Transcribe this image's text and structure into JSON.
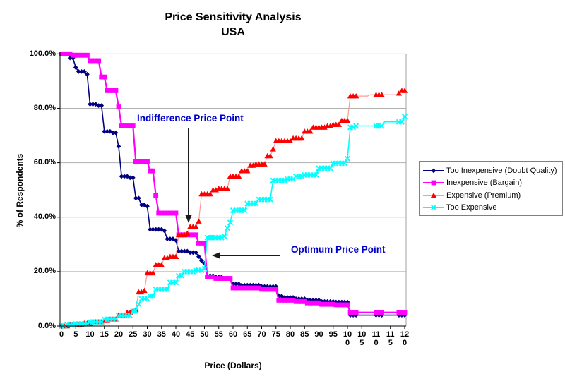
{
  "title": {
    "line1": "Price Sensitivity Analysis",
    "line2": "USA"
  },
  "axes": {
    "y_title": "% of Respondents",
    "x_title": "Price (Dollars)",
    "y_ticks": [
      {
        "label": "0.0%",
        "value": 0
      },
      {
        "label": "20.0%",
        "value": 20
      },
      {
        "label": "40.0%",
        "value": 40
      },
      {
        "label": "60.0%",
        "value": 60
      },
      {
        "label": "80.0%",
        "value": 80
      },
      {
        "label": "100.0%",
        "value": 100
      }
    ],
    "x_tick_step": 5,
    "x_tick_labels": [
      "0",
      "5",
      "10",
      "15",
      "20",
      "25",
      "30",
      "35",
      "40",
      "45",
      "50",
      "55",
      "60",
      "65",
      "70",
      "75",
      "80",
      "85",
      "90",
      "95",
      "10\n0",
      "10\n5",
      "11\n0",
      "11\n5",
      "12\n0"
    ]
  },
  "annotations": {
    "indifference": "Indifference Price Point",
    "optimum": "Optimum Price Point",
    "text_color": "#0000CC",
    "arrow_color": "#1a1a1a"
  },
  "legend": {
    "items": [
      {
        "label": "Too Inexpensive (Doubt Quality)",
        "marker": "diamond",
        "color": "#000080",
        "line_color": "#000080"
      },
      {
        "label": "Inexpensive (Bargain)",
        "marker": "square",
        "color": "#FF00FF",
        "line_color": "#FF00FF"
      },
      {
        "label": "Expensive (Premium)",
        "marker": "triangle",
        "color": "#FF0000",
        "line_color": "#FF9999"
      },
      {
        "label": "Too Expensive",
        "marker": "x",
        "color": "#00FFFF",
        "line_color": "#00FFFF"
      }
    ]
  },
  "chart_data": {
    "type": "line",
    "title": "Price Sensitivity Analysis USA",
    "xlabel": "Price (Dollars)",
    "ylabel": "% of Respondents",
    "xlim": [
      0,
      120
    ],
    "ylim": [
      0,
      100
    ],
    "grid": "horizontal",
    "legend_position": "right",
    "interpolation": "step-after; breakpoints are [price, percent]; points plotted every $1",
    "marker_prices_above_100": [
      101,
      102,
      103,
      110,
      111,
      112,
      118,
      119,
      120
    ],
    "series": [
      {
        "name": "Too Inexpensive (Doubt Quality)",
        "marker": "diamond",
        "color": "#000080",
        "line_color": "#000080",
        "line_width": 1.6,
        "breakpoints": [
          [
            0,
            100
          ],
          [
            3,
            98.5
          ],
          [
            5,
            95
          ],
          [
            6,
            93.5
          ],
          [
            9,
            92.5
          ],
          [
            10,
            81.5
          ],
          [
            13,
            81
          ],
          [
            15,
            71.5
          ],
          [
            18,
            71
          ],
          [
            20,
            66
          ],
          [
            21,
            55
          ],
          [
            24,
            54.5
          ],
          [
            26,
            47
          ],
          [
            28,
            44.5
          ],
          [
            30,
            44
          ],
          [
            31,
            35.5
          ],
          [
            36,
            35
          ],
          [
            37,
            32
          ],
          [
            40,
            31.5
          ],
          [
            41,
            27.5
          ],
          [
            45,
            27
          ],
          [
            48,
            25.5
          ],
          [
            49,
            24
          ],
          [
            50,
            23
          ],
          [
            51,
            18.5
          ],
          [
            54,
            18
          ],
          [
            57,
            17.5
          ],
          [
            60,
            15.5
          ],
          [
            63,
            15
          ],
          [
            70,
            14.5
          ],
          [
            76,
            11
          ],
          [
            78,
            10.5
          ],
          [
            82,
            10
          ],
          [
            86,
            9.5
          ],
          [
            91,
            9
          ],
          [
            96,
            8.8
          ],
          [
            101,
            4
          ],
          [
            120,
            4
          ]
        ]
      },
      {
        "name": "Inexpensive (Bargain)",
        "marker": "square",
        "color": "#FF00FF",
        "line_color": "#FF00FF",
        "line_width": 2.2,
        "breakpoints": [
          [
            0,
            100
          ],
          [
            4,
            99.5
          ],
          [
            10,
            97.5
          ],
          [
            14,
            91.5
          ],
          [
            16,
            86.5
          ],
          [
            20,
            80.5
          ],
          [
            21,
            73.5
          ],
          [
            26,
            60.5
          ],
          [
            31,
            57
          ],
          [
            33,
            48
          ],
          [
            34,
            41.5
          ],
          [
            41,
            33.5
          ],
          [
            48,
            30.5
          ],
          [
            51,
            18
          ],
          [
            54,
            17.5
          ],
          [
            60,
            14
          ],
          [
            70,
            13.5
          ],
          [
            76,
            9.5
          ],
          [
            82,
            9
          ],
          [
            86,
            8.5
          ],
          [
            91,
            8
          ],
          [
            96,
            7.8
          ],
          [
            101,
            5
          ],
          [
            120,
            5
          ]
        ]
      },
      {
        "name": "Expensive (Premium)",
        "marker": "triangle",
        "color": "#FF0000",
        "line_color": "#FF9999",
        "line_width": 1.2,
        "breakpoints": [
          [
            0,
            0
          ],
          [
            3,
            0.5
          ],
          [
            8,
            1
          ],
          [
            11,
            1.5
          ],
          [
            15,
            2
          ],
          [
            17,
            2.5
          ],
          [
            20,
            4
          ],
          [
            23,
            5
          ],
          [
            25,
            5.5
          ],
          [
            26,
            6
          ],
          [
            27,
            12.5
          ],
          [
            29,
            13
          ],
          [
            30,
            19.5
          ],
          [
            33,
            22.5
          ],
          [
            36,
            25
          ],
          [
            38,
            25.5
          ],
          [
            41,
            33.5
          ],
          [
            44,
            34
          ],
          [
            45,
            36.5
          ],
          [
            48,
            38.5
          ],
          [
            49,
            48.5
          ],
          [
            53,
            50
          ],
          [
            55,
            50.5
          ],
          [
            59,
            55
          ],
          [
            63,
            57
          ],
          [
            66,
            59
          ],
          [
            68,
            59.5
          ],
          [
            72,
            62.5
          ],
          [
            74,
            65
          ],
          [
            75,
            68
          ],
          [
            81,
            69
          ],
          [
            85,
            71.5
          ],
          [
            88,
            73
          ],
          [
            93,
            73.5
          ],
          [
            95,
            74
          ],
          [
            98,
            75.5
          ],
          [
            101,
            84.5
          ],
          [
            108,
            85
          ],
          [
            118,
            85.5
          ],
          [
            119,
            86.5
          ],
          [
            120,
            86.5
          ]
        ]
      },
      {
        "name": "Too Expensive",
        "marker": "x",
        "color": "#00FFFF",
        "line_color": "#00FFFF",
        "line_width": 1.6,
        "breakpoints": [
          [
            0,
            0
          ],
          [
            2,
            0.5
          ],
          [
            5,
            0.8
          ],
          [
            10,
            1.5
          ],
          [
            15,
            2.5
          ],
          [
            20,
            3.8
          ],
          [
            25,
            5.5
          ],
          [
            27,
            8
          ],
          [
            28,
            10
          ],
          [
            31,
            11
          ],
          [
            33,
            13.5
          ],
          [
            38,
            16
          ],
          [
            41,
            18.5
          ],
          [
            43,
            20
          ],
          [
            47,
            20.5
          ],
          [
            50,
            21
          ],
          [
            51,
            32.5
          ],
          [
            57,
            33
          ],
          [
            58,
            36
          ],
          [
            59,
            38
          ],
          [
            60,
            42.5
          ],
          [
            65,
            45
          ],
          [
            69,
            46.5
          ],
          [
            74,
            53.5
          ],
          [
            79,
            54
          ],
          [
            82,
            55
          ],
          [
            85,
            55.5
          ],
          [
            90,
            58
          ],
          [
            95,
            59.8
          ],
          [
            100,
            61.5
          ],
          [
            101,
            73
          ],
          [
            103,
            73.5
          ],
          [
            113,
            75
          ],
          [
            119,
            75
          ],
          [
            120,
            77
          ]
        ]
      }
    ]
  },
  "colors": {
    "gridline": "#b0b0b0",
    "axis": "#000000",
    "plot_right_border": "#a0a0a0",
    "background": "#ffffff"
  }
}
